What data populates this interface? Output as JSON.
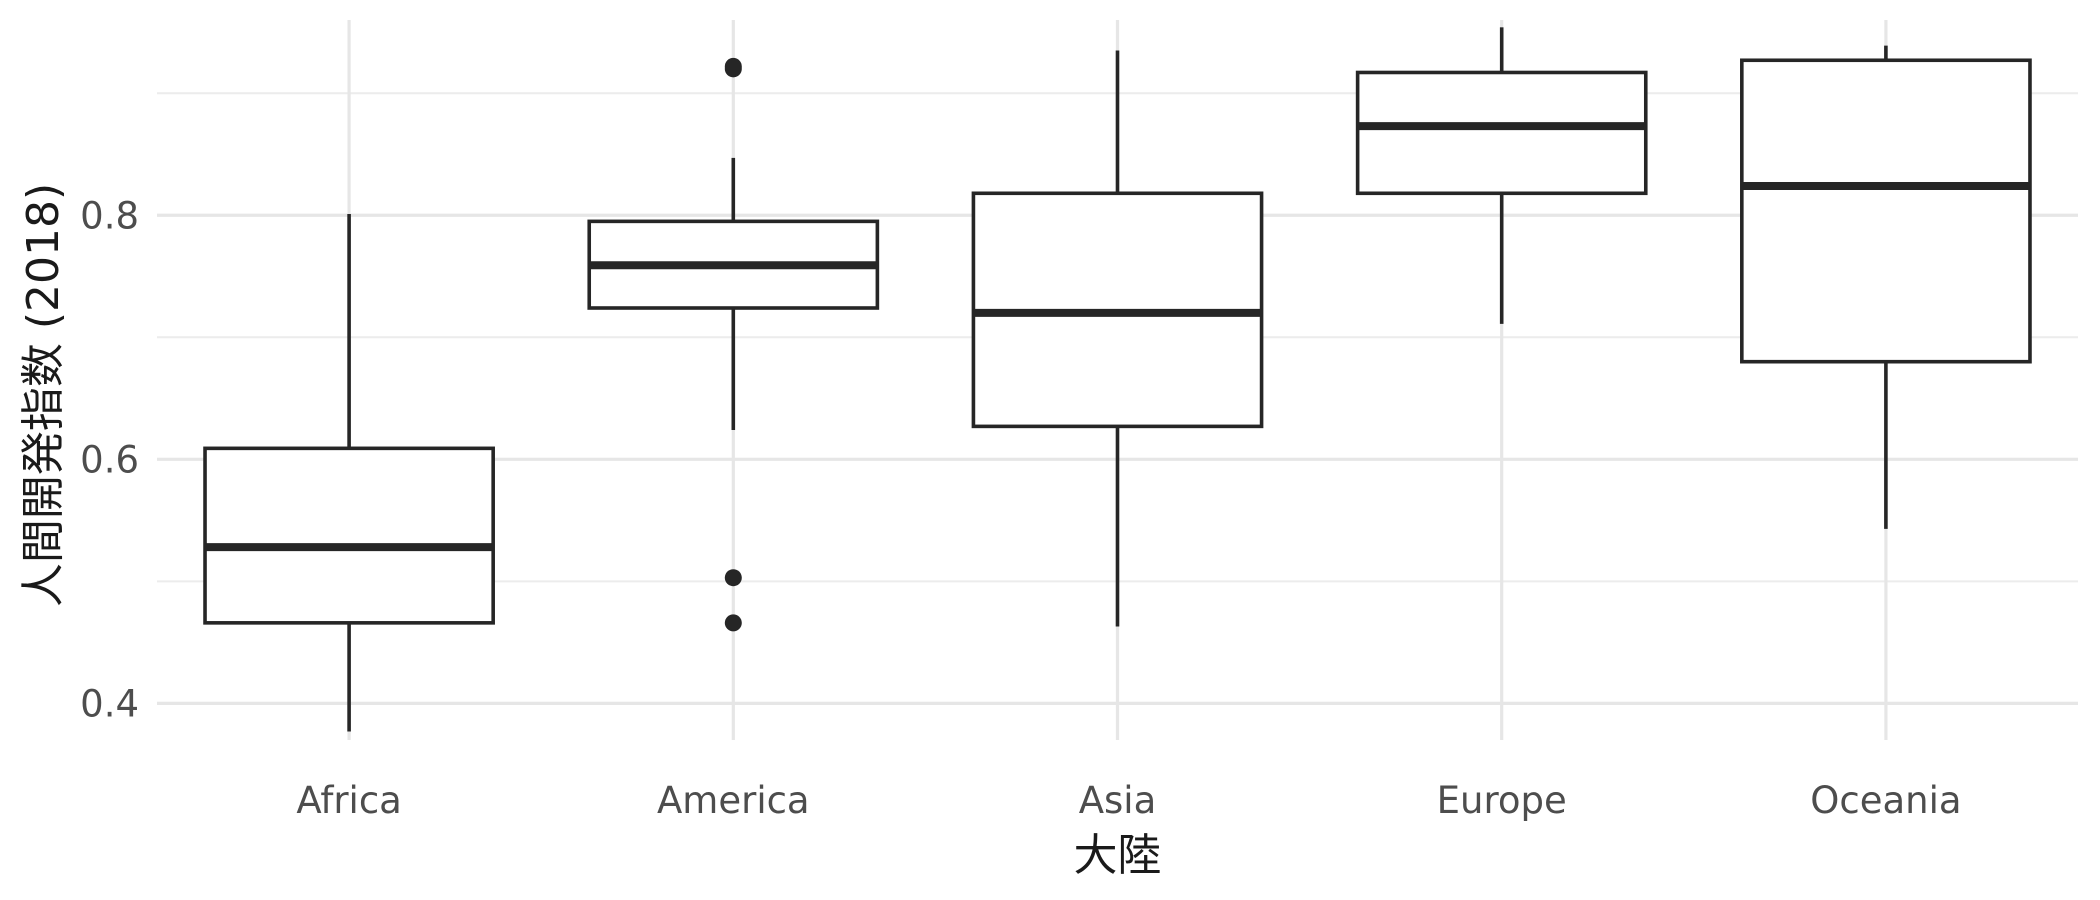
{
  "chart_data": {
    "type": "box",
    "title": "",
    "xlabel": "大陸",
    "ylabel": "人間開発指数 (2018)",
    "ylim": [
      0.37,
      0.96
    ],
    "yticks": [
      0.4,
      0.6,
      0.8
    ],
    "ytick_labels": [
      "0.4",
      "0.6",
      "0.8"
    ],
    "yminor": [
      0.5,
      0.7,
      0.9
    ],
    "grid": true,
    "legend": "none",
    "categories": [
      "Africa",
      "America",
      "Asia",
      "Europe",
      "Oceania"
    ],
    "boxes": [
      {
        "category": "Africa",
        "whisker_low": 0.377,
        "q1": 0.466,
        "median": 0.528,
        "q3": 0.609,
        "whisker_high": 0.801,
        "outliers": []
      },
      {
        "category": "America",
        "whisker_low": 0.624,
        "q1": 0.724,
        "median": 0.759,
        "q3": 0.795,
        "whisker_high": 0.847,
        "outliers": [
          0.466,
          0.503,
          0.92,
          0.922
        ]
      },
      {
        "category": "Asia",
        "whisker_low": 0.463,
        "q1": 0.627,
        "median": 0.72,
        "q3": 0.818,
        "whisker_high": 0.935,
        "outliers": []
      },
      {
        "category": "Europe",
        "whisker_low": 0.711,
        "q1": 0.818,
        "median": 0.873,
        "q3": 0.917,
        "whisker_high": 0.954,
        "outliers": []
      },
      {
        "category": "Oceania",
        "whisker_low": 0.543,
        "q1": 0.68,
        "median": 0.824,
        "q3": 0.927,
        "whisker_high": 0.939,
        "outliers": []
      }
    ]
  }
}
